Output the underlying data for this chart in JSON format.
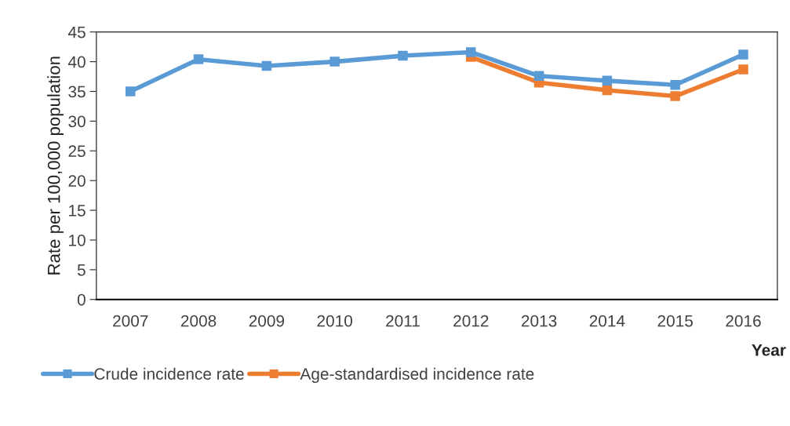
{
  "chart_data": {
    "type": "line",
    "xlabel": "Year",
    "ylabel": "Rate per 100,000 population",
    "categories": [
      "2007",
      "2008",
      "2009",
      "2010",
      "2011",
      "2012",
      "2013",
      "2014",
      "2015",
      "2016"
    ],
    "series": [
      {
        "name": "Crude incidence rate",
        "color": "#5b9bd5",
        "values": [
          35.0,
          40.4,
          39.3,
          40.0,
          41.0,
          41.6,
          37.6,
          36.8,
          36.1,
          41.2
        ]
      },
      {
        "name": "Age-standardised incidence rate",
        "color": "#ed7d31",
        "values": [
          null,
          null,
          null,
          null,
          null,
          40.8,
          36.5,
          35.2,
          34.2,
          38.7
        ]
      }
    ],
    "ylim": [
      0,
      45
    ],
    "yticks": [
      0,
      5,
      10,
      15,
      20,
      25,
      30,
      35,
      40,
      45
    ],
    "grid": false,
    "legend": "bottom left",
    "marker": "square",
    "line_style": "solid"
  }
}
